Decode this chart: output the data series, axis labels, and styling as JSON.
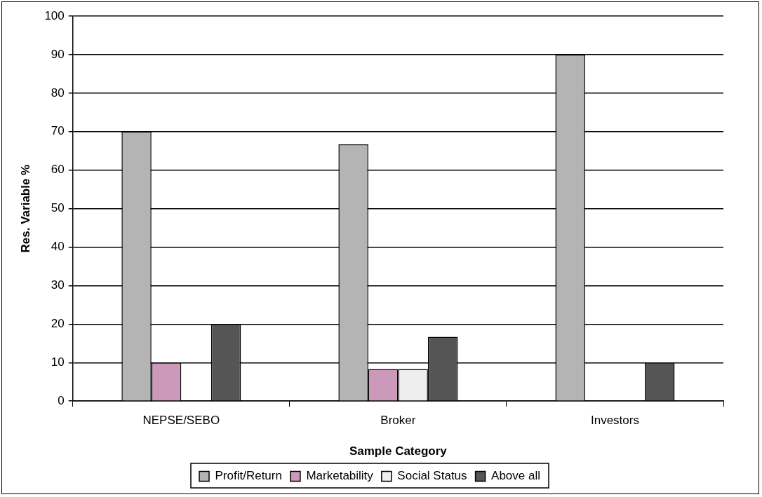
{
  "chart_data": {
    "type": "bar",
    "xlabel": "Sample Category",
    "ylabel": "Res. Variable %",
    "categories": [
      "NEPSE/SEBO",
      "Broker",
      "Investors"
    ],
    "series": [
      {
        "name": "Profit/Return",
        "color": "#b4b4b4",
        "values": [
          70,
          66.7,
          90
        ]
      },
      {
        "name": "Marketability",
        "color": "#cc99bb",
        "values": [
          10,
          8.3,
          0
        ]
      },
      {
        "name": "Social Status",
        "color": "#eeeeee",
        "values": [
          0,
          8.3,
          0
        ]
      },
      {
        "name": "Above all",
        "color": "#555555",
        "values": [
          20,
          16.7,
          10
        ]
      }
    ],
    "ylim": [
      0,
      100
    ],
    "yticks": [
      0,
      10,
      20,
      30,
      40,
      50,
      60,
      70,
      80,
      90,
      100
    ],
    "grid": "y",
    "legend": "bottom"
  }
}
